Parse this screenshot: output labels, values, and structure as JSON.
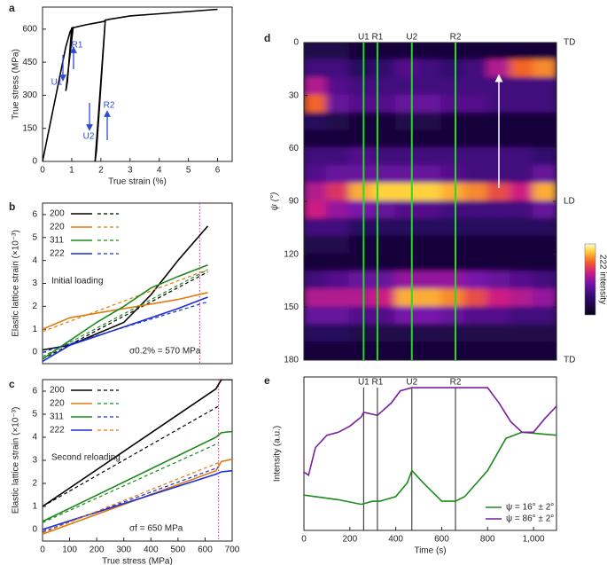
{
  "chart_data": [
    {
      "type": "line",
      "panel": "a",
      "xlabel": "True strain (%)",
      "ylabel": "True stress (MPa)",
      "xlim": [
        0,
        6.5
      ],
      "ylim": [
        0,
        700
      ],
      "xticks": [
        0,
        1,
        2,
        3,
        4,
        5,
        6
      ],
      "yticks": [
        0,
        150,
        300,
        450,
        600
      ],
      "series": [
        {
          "name": null,
          "color": "#000000",
          "x": [
            0,
            0.8,
            0.95,
            1.05,
            0.8,
            0.85,
            1.0,
            1.5,
            2.1,
            2.15,
            1.8,
            1.85,
            2.15,
            2.3,
            3,
            4,
            5,
            6
          ],
          "values": [
            0,
            520,
            590,
            610,
            320,
            360,
            605,
            620,
            635,
            640,
            0,
            50,
            640,
            645,
            660,
            670,
            680,
            690
          ]
        }
      ],
      "annotations": [
        "U1",
        "R1",
        "U2",
        "R2"
      ]
    },
    {
      "type": "line",
      "panel": "b",
      "ylabel": "Elastic lattice strain (×10⁻³)",
      "xlim": [
        0,
        700
      ],
      "ylim": [
        -0.5,
        6.5
      ],
      "yticks": [
        0,
        1,
        2,
        3,
        4,
        5,
        6
      ],
      "x": [
        0,
        100,
        200,
        300,
        400,
        500,
        610
      ],
      "fit_x": [
        0,
        610
      ],
      "vline": 580,
      "series": [
        {
          "name": "200",
          "color": "#000000",
          "values": [
            0.1,
            0.3,
            0.8,
            1.3,
            2.5,
            4.0,
            5.5
          ],
          "fit_color": "#000000",
          "fit": [
            -0.3,
            3.5
          ]
        },
        {
          "name": "220",
          "color": "#e07b10",
          "values": [
            1.0,
            1.5,
            1.7,
            1.9,
            2.1,
            2.3,
            2.6
          ],
          "fit_color": "#e07b10",
          "fit": [
            0.9,
            3.6
          ]
        },
        {
          "name": "311",
          "color": "#1a8a1a",
          "values": [
            -0.3,
            0.5,
            1.3,
            2.0,
            2.8,
            3.3,
            3.8
          ],
          "fit_color": "#1a8a1a",
          "fit": [
            -0.2,
            3.6
          ]
        },
        {
          "name": "222",
          "color": "#1c2fd6",
          "values": [
            -0.4,
            0.3,
            0.7,
            1.1,
            1.5,
            1.9,
            2.4
          ],
          "fit_color": "#1c2fd6",
          "fit": [
            0.0,
            2.2
          ]
        }
      ],
      "notes": [
        "Initial loading",
        "σ0.2% = 570 MPa"
      ]
    },
    {
      "type": "line",
      "panel": "c",
      "xlabel": "True stress (MPa)",
      "ylabel": "Elastic lattice strain (×10⁻³)",
      "xlim": [
        0,
        700
      ],
      "ylim": [
        -0.5,
        6.5
      ],
      "xticks": [
        0,
        100,
        200,
        300,
        400,
        500,
        600,
        700
      ],
      "yticks": [
        0,
        1,
        2,
        3,
        4,
        5,
        6
      ],
      "x": [
        0,
        640,
        660,
        700
      ],
      "fit_x": [
        0,
        650
      ],
      "vline": 650,
      "series": [
        {
          "name": "200",
          "color": "#000000",
          "values": [
            1.0,
            6.1,
            6.5,
            6.5
          ],
          "fit_color": "#000000",
          "fit": [
            1.0,
            5.35
          ]
        },
        {
          "name": "220",
          "color": "#e07b10",
          "values": [
            -0.2,
            2.55,
            2.95,
            3.05
          ],
          "fit_color": "#1a8a1a",
          "fit": [
            0.3,
            3.75
          ]
        },
        {
          "name": "311",
          "color": "#1a8a1a",
          "values": [
            0.35,
            4.0,
            4.2,
            4.25
          ],
          "fit_color": "#1c2fd6",
          "fit": [
            -0.1,
            2.7
          ]
        },
        {
          "name": "222",
          "color": "#1c2fd6",
          "values": [
            0.0,
            2.4,
            2.5,
            2.55
          ],
          "fit_color": "#e07b10",
          "fit": [
            -0.15,
            2.9
          ]
        }
      ],
      "notes": [
        "Second reloading",
        "σf = 650 MPa"
      ]
    },
    {
      "type": "heatmap",
      "panel": "d",
      "ylabel": "ψ (°)",
      "colorbar_label": "222 intensity",
      "xlim": [
        0,
        1100
      ],
      "ylim": [
        0,
        180
      ],
      "yticks": [
        0,
        30,
        60,
        90,
        120,
        150,
        180
      ],
      "side_labels": [
        {
          "value": 0,
          "label": "TD"
        },
        {
          "value": 90,
          "label": "LD"
        },
        {
          "value": 180,
          "label": "TD"
        }
      ],
      "events": {
        "labels": [
          "U1",
          "R1",
          "U2",
          "R2"
        ],
        "times": [
          260,
          320,
          470,
          660
        ]
      },
      "time": [
        50,
        150,
        250,
        350,
        450,
        550,
        650,
        750,
        850,
        950,
        1050
      ],
      "psi": [
        5,
        15,
        25,
        35,
        45,
        55,
        65,
        75,
        85,
        95,
        105,
        115,
        125,
        135,
        145,
        155,
        165,
        175
      ],
      "z": [
        [
          0.15,
          0.15,
          0.1,
          0.1,
          0.1,
          0.1,
          0.1,
          0.1,
          0.1,
          0.1,
          0.1
        ],
        [
          0.3,
          0.3,
          0.2,
          0.25,
          0.35,
          0.3,
          0.25,
          0.3,
          0.55,
          0.75,
          0.8
        ],
        [
          0.55,
          0.35,
          0.3,
          0.3,
          0.3,
          0.3,
          0.3,
          0.3,
          0.3,
          0.3,
          0.3
        ],
        [
          0.75,
          0.4,
          0.35,
          0.35,
          0.4,
          0.4,
          0.35,
          0.35,
          0.3,
          0.3,
          0.3
        ],
        [
          0.2,
          0.15,
          0.1,
          0.1,
          0.15,
          0.15,
          0.1,
          0.1,
          0.1,
          0.1,
          0.1
        ],
        [
          0.1,
          0.1,
          0.1,
          0.1,
          0.1,
          0.1,
          0.1,
          0.1,
          0.1,
          0.1,
          0.1
        ],
        [
          0.3,
          0.3,
          0.35,
          0.3,
          0.3,
          0.3,
          0.3,
          0.3,
          0.3,
          0.3,
          0.25
        ],
        [
          0.35,
          0.4,
          0.4,
          0.4,
          0.4,
          0.4,
          0.35,
          0.3,
          0.3,
          0.3,
          0.4
        ],
        [
          0.55,
          0.65,
          0.85,
          0.9,
          0.9,
          0.9,
          0.85,
          0.8,
          0.7,
          0.6,
          0.85
        ],
        [
          0.6,
          0.5,
          0.45,
          0.4,
          0.35,
          0.35,
          0.3,
          0.3,
          0.3,
          0.3,
          0.4
        ],
        [
          0.3,
          0.3,
          0.2,
          0.2,
          0.2,
          0.2,
          0.2,
          0.2,
          0.2,
          0.2,
          0.2
        ],
        [
          0.15,
          0.15,
          0.1,
          0.1,
          0.1,
          0.1,
          0.1,
          0.1,
          0.1,
          0.1,
          0.1
        ],
        [
          0.1,
          0.1,
          0.1,
          0.1,
          0.1,
          0.1,
          0.1,
          0.1,
          0.1,
          0.1,
          0.1
        ],
        [
          0.3,
          0.35,
          0.4,
          0.4,
          0.5,
          0.5,
          0.5,
          0.45,
          0.4,
          0.35,
          0.3
        ],
        [
          0.55,
          0.55,
          0.55,
          0.6,
          0.85,
          0.85,
          0.8,
          0.7,
          0.6,
          0.55,
          0.5
        ],
        [
          0.4,
          0.4,
          0.35,
          0.35,
          0.45,
          0.45,
          0.4,
          0.35,
          0.35,
          0.3,
          0.3
        ],
        [
          0.2,
          0.2,
          0.15,
          0.15,
          0.15,
          0.15,
          0.15,
          0.15,
          0.15,
          0.15,
          0.15
        ],
        [
          0.1,
          0.1,
          0.1,
          0.1,
          0.1,
          0.1,
          0.1,
          0.1,
          0.1,
          0.1,
          0.1
        ]
      ]
    },
    {
      "type": "line",
      "panel": "e",
      "xlabel": "Time (s)",
      "ylabel": "Intensity (a.u.)",
      "xlim": [
        0,
        1100
      ],
      "ylim": [
        0,
        1
      ],
      "xticks": [
        0,
        200,
        400,
        600,
        800,
        {
          "value": 1000,
          "label": "1,000"
        }
      ],
      "events": {
        "labels": [
          "U1",
          "R1",
          "U2",
          "R2"
        ],
        "times": [
          260,
          320,
          470,
          660
        ]
      },
      "series": [
        {
          "name": "ψ = 16° ± 2°",
          "color": "#1a8a1a",
          "x": [
            0,
            50,
            150,
            250,
            300,
            330,
            400,
            450,
            470,
            520,
            600,
            660,
            700,
            800,
            880,
            950,
            1100
          ],
          "values": [
            0.23,
            0.22,
            0.2,
            0.17,
            0.19,
            0.19,
            0.22,
            0.31,
            0.39,
            0.31,
            0.19,
            0.19,
            0.22,
            0.39,
            0.6,
            0.64,
            0.62
          ]
        },
        {
          "name": "ψ = 86° ± 2°",
          "color": "#7a1fa0",
          "x": [
            0,
            20,
            50,
            100,
            150,
            200,
            250,
            260,
            320,
            380,
            420,
            470,
            550,
            650,
            800,
            850,
            900,
            950,
            1000,
            1050,
            1100
          ],
          "values": [
            0.38,
            0.36,
            0.54,
            0.62,
            0.64,
            0.68,
            0.74,
            0.77,
            0.75,
            0.83,
            0.91,
            0.93,
            0.93,
            0.93,
            0.93,
            0.83,
            0.71,
            0.64,
            0.64,
            0.73,
            0.81
          ]
        }
      ]
    }
  ]
}
